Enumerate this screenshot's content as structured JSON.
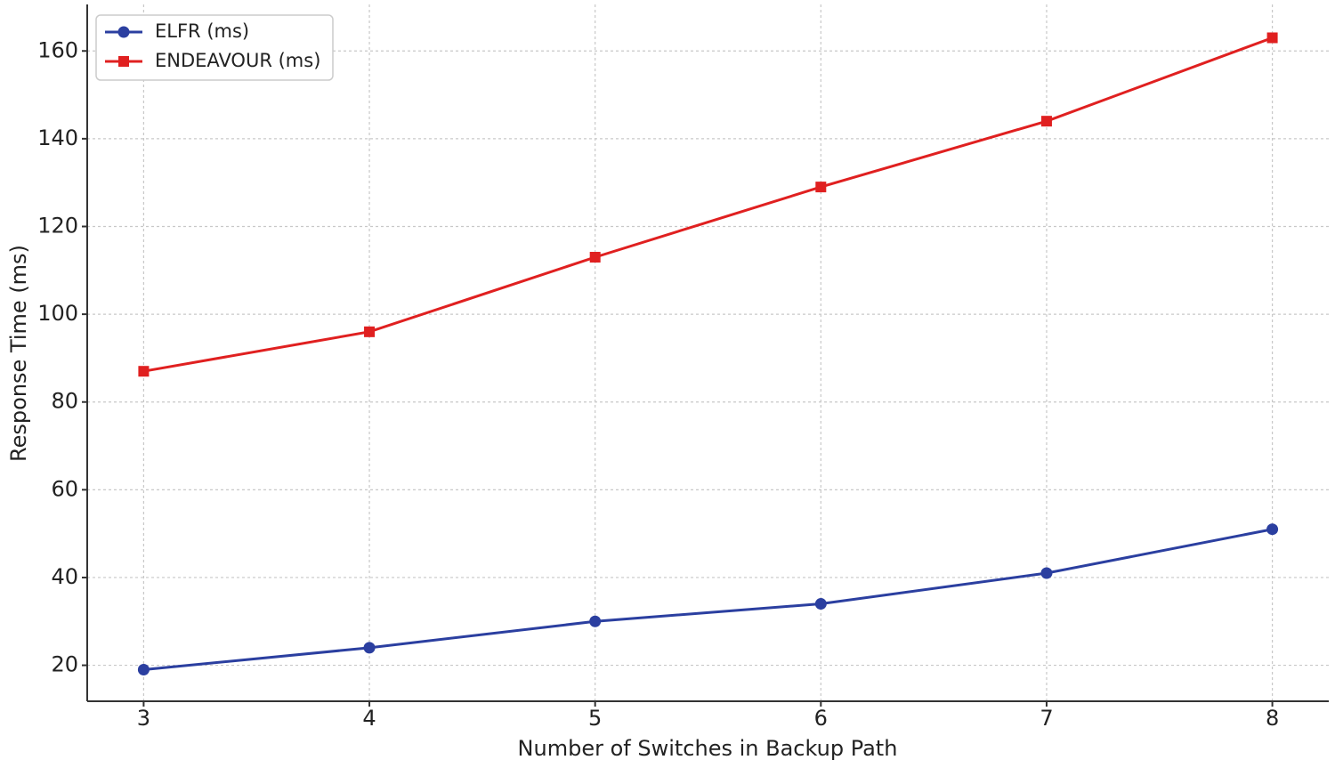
{
  "chart_data": {
    "type": "line",
    "x_label": "Number of Switches in Backup Path",
    "y_label": "Response Time (ms)",
    "x": [
      3,
      4,
      5,
      6,
      7,
      8
    ],
    "series": [
      {
        "name": "ELFR (ms)",
        "color": "#2b3fa0",
        "marker": "circle",
        "values": [
          19,
          24,
          30,
          34,
          41,
          51
        ]
      },
      {
        "name": "ENDEAVOUR (ms)",
        "color": "#e02020",
        "marker": "square",
        "values": [
          87,
          96,
          113,
          129,
          144,
          163
        ]
      }
    ],
    "xlim": [
      2.75,
      8.25
    ],
    "xticks": [
      3,
      4,
      5,
      6,
      7,
      8
    ],
    "ylim": [
      11.8,
      170.6
    ],
    "yticks": [
      20,
      40,
      60,
      80,
      100,
      120,
      140,
      160
    ],
    "grid": true,
    "legend": "upper left"
  }
}
